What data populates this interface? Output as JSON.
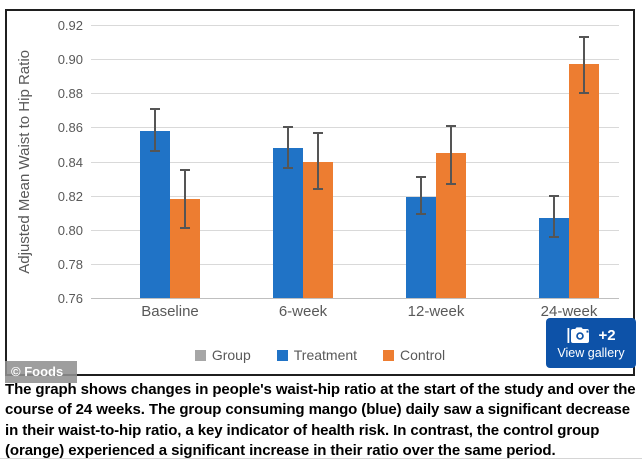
{
  "watermark": "© Foods",
  "gallery_badge": {
    "count_label": "+2",
    "action_label": "View gallery",
    "bg_color": "#0d52a8"
  },
  "caption": "The graph shows changes in people's waist-hip ratio at the start of the study and over the course of 24 weeks. The group consuming mango (blue) daily saw a significant decrease in their waist-to-hip ratio, a key indicator of health risk. In contrast, the control group (orange) experienced a significant increase in their ratio over the same period.",
  "chart_data": {
    "type": "bar",
    "title": "",
    "xlabel": "",
    "ylabel": "Adjusted Mean Waist to Hip Ratio",
    "ylim": [
      0.76,
      0.92
    ],
    "ytick_step": 0.02,
    "yticks": [
      "0.92",
      "0.90",
      "0.88",
      "0.86",
      "0.84",
      "0.82",
      "0.80",
      "0.78",
      "0.76"
    ],
    "grid": true,
    "legend_position": "bottom",
    "categories": [
      "Baseline",
      "6-week",
      "12-week",
      "24-week"
    ],
    "series": [
      {
        "name": "Group",
        "color": "#a6a6a6",
        "values": null
      },
      {
        "name": "Treatment",
        "color": "#2073c6",
        "values": [
          0.858,
          0.848,
          0.819,
          0.807
        ],
        "error_high": [
          0.871,
          0.86,
          0.831,
          0.82
        ],
        "error_low": [
          0.846,
          0.836,
          0.809,
          0.796
        ]
      },
      {
        "name": "Control",
        "color": "#ed7d31",
        "values": [
          0.818,
          0.84,
          0.845,
          0.897
        ],
        "error_high": [
          0.835,
          0.857,
          0.861,
          0.913
        ],
        "error_low": [
          0.801,
          0.824,
          0.827,
          0.88
        ]
      }
    ],
    "colors": {
      "gridline": "#d9d9d9",
      "axis_text": "#595959",
      "error_bar": "#555555"
    }
  }
}
